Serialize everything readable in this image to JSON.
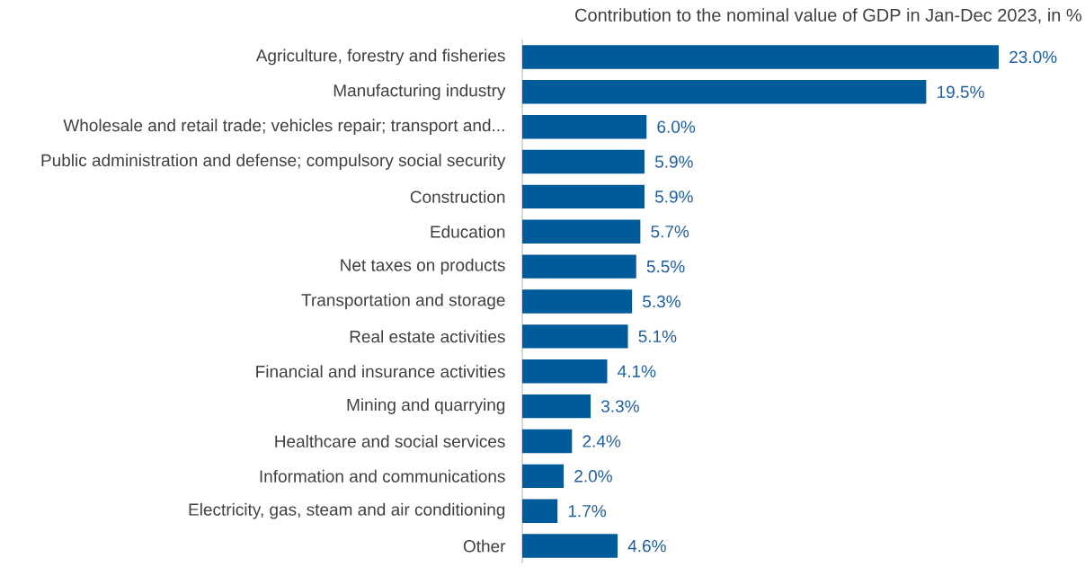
{
  "chart_data": {
    "type": "bar",
    "orientation": "horizontal",
    "title": "Contribution to the nominal value of GDP in Jan-Dec 2023, in %",
    "categories": [
      "Agriculture, forestry and fisheries",
      "Manufacturing industry",
      "Wholesale and retail trade; vehicles repair; transport and...",
      "Public administration and defense; compulsory social security",
      "Construction",
      "Education",
      "Net taxes on products",
      "Transportation and storage",
      "Real estate activities",
      "Financial and insurance activities",
      "Mining and quarrying",
      "Healthcare and social services",
      "Information and communications",
      "Electricity, gas, steam and air conditioning",
      "Other"
    ],
    "values": [
      23.0,
      19.5,
      6.0,
      5.9,
      5.9,
      5.7,
      5.5,
      5.3,
      5.1,
      4.1,
      3.3,
      2.4,
      2.0,
      1.7,
      4.6
    ],
    "value_labels": [
      "23.0%",
      "19.5%",
      "6.0%",
      "5.9%",
      "5.9%",
      "5.7%",
      "5.5%",
      "5.3%",
      "5.1%",
      "4.1%",
      "3.3%",
      "2.4%",
      "2.0%",
      "1.7%",
      "4.6%"
    ],
    "color": "#005b9a"
  }
}
